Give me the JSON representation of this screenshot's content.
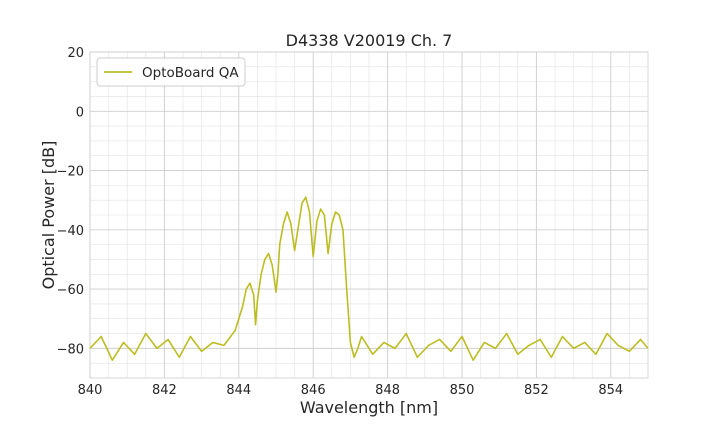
{
  "chart_data": {
    "type": "line",
    "title": "D4338 V20019 Ch. 7",
    "xlabel": "Wavelength [nm]",
    "ylabel": "Optical Power [dB]",
    "xlim": [
      840,
      855
    ],
    "ylim": [
      -90,
      20
    ],
    "xticks": [
      840,
      842,
      844,
      846,
      848,
      850,
      852,
      854
    ],
    "yticks": [
      20,
      0,
      -20,
      -40,
      -60,
      -80
    ],
    "xtick_labels": [
      "840",
      "842",
      "844",
      "846",
      "848",
      "850",
      "852",
      "854"
    ],
    "ytick_labels": [
      "20",
      "0",
      "−20",
      "−40",
      "−60",
      "−80"
    ],
    "grid": true,
    "legend_position": "top-left",
    "series": [
      {
        "name": "OptoBoard QA",
        "color": "#bcbd22",
        "x": [
          840.0,
          840.3,
          840.6,
          840.9,
          841.2,
          841.5,
          841.8,
          842.1,
          842.4,
          842.7,
          843.0,
          843.3,
          843.6,
          843.9,
          844.0,
          844.1,
          844.2,
          844.3,
          844.4,
          844.45,
          844.5,
          844.6,
          844.7,
          844.8,
          844.9,
          845.0,
          845.05,
          845.1,
          845.2,
          845.3,
          845.4,
          845.5,
          845.6,
          845.7,
          845.8,
          845.9,
          846.0,
          846.1,
          846.2,
          846.3,
          846.4,
          846.5,
          846.6,
          846.7,
          846.8,
          846.9,
          847.0,
          847.1,
          847.2,
          847.3,
          847.6,
          847.9,
          848.2,
          848.5,
          848.8,
          849.1,
          849.4,
          849.7,
          850.0,
          850.3,
          850.6,
          850.9,
          851.2,
          851.5,
          851.8,
          852.1,
          852.4,
          852.7,
          853.0,
          853.3,
          853.6,
          853.9,
          854.2,
          854.5,
          854.8,
          855.0
        ],
        "y": [
          -80,
          -76,
          -84,
          -78,
          -82,
          -75,
          -80,
          -77,
          -83,
          -76,
          -81,
          -78,
          -79,
          -74,
          -70,
          -66,
          -60,
          -58,
          -62,
          -72,
          -64,
          -55,
          -50,
          -48,
          -52,
          -61,
          -55,
          -45,
          -38,
          -34,
          -38,
          -47,
          -39,
          -31,
          -29,
          -34,
          -49,
          -37,
          -33,
          -35,
          -48,
          -38,
          -34,
          -35,
          -40,
          -60,
          -78,
          -83,
          -80,
          -76,
          -82,
          -78,
          -80,
          -75,
          -83,
          -79,
          -77,
          -81,
          -76,
          -84,
          -78,
          -80,
          -75,
          -82,
          -79,
          -77,
          -83,
          -76,
          -80,
          -78,
          -82,
          -75,
          -79,
          -81,
          -77,
          -80
        ]
      }
    ]
  }
}
